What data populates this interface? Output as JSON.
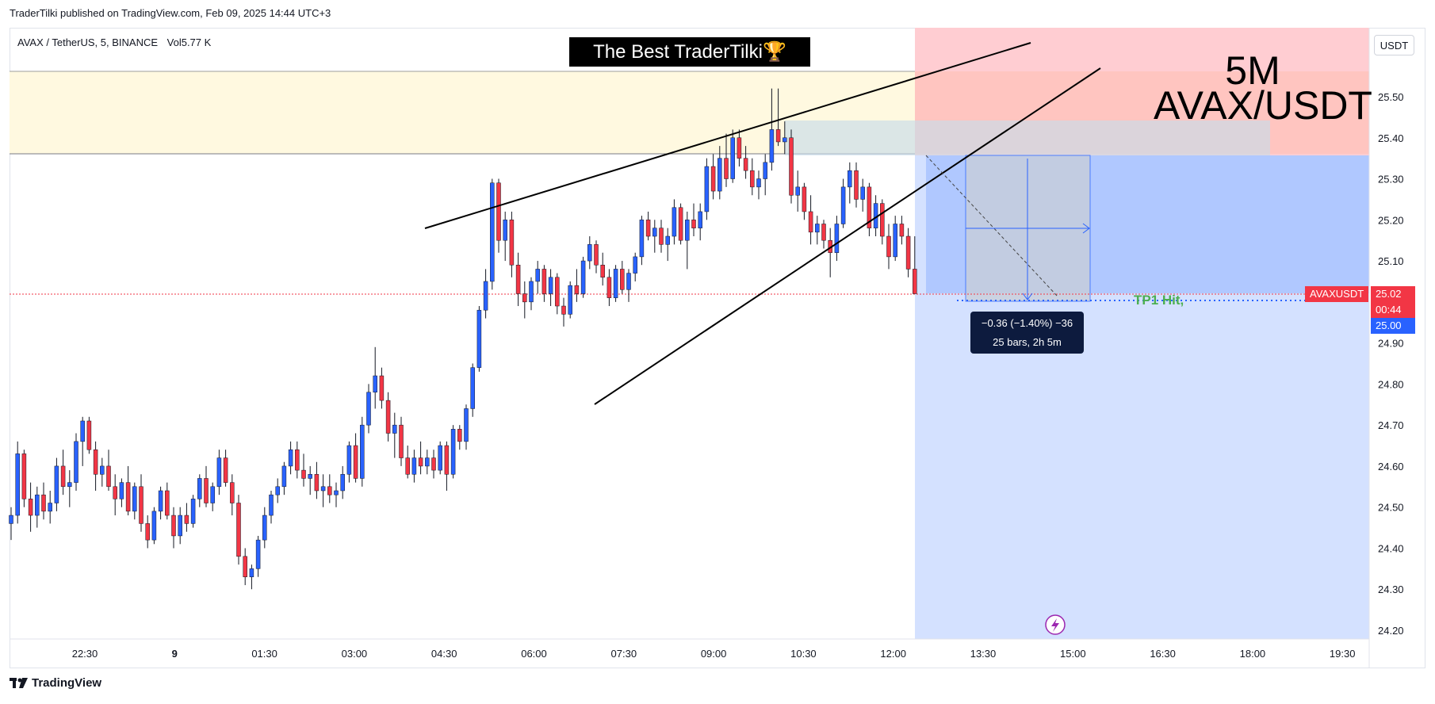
{
  "header": {
    "publisher_line": "TraderTilki published on TradingView.com, Feb 09, 2025 14:44 UTC+3",
    "symbol": "AVAX / TetherUS, 5, BINANCE",
    "volume_label": "Vol",
    "volume_value": "5.77 K"
  },
  "overlay": {
    "title_box": "The Best TraderTilki🏆",
    "big_label_line1": "5M",
    "big_label_line2": "AVAX/USDT",
    "tp1_text": "TP1 Hit,",
    "measure_line1": "−0.36 (−1.40%) −36",
    "measure_line2": "25 bars, 2h 5m"
  },
  "price_scale": {
    "currency_button": "USDT",
    "symbol_tag": "AVAXUSDT",
    "last_price": "25.02",
    "countdown": "00:44",
    "crosshair_price": "25.00"
  },
  "footer": {
    "logo_text": "TradingView"
  },
  "colors": {
    "up_candle": "#2962ff",
    "down_candle": "#f23645",
    "stop_zone": "#ffcdd2",
    "target_zone": "#d4e1ff",
    "supply_zone": "#fff9e0",
    "tp1_green": "#4caf50",
    "trend_lines": "#000000"
  },
  "chart_data": {
    "type": "candlestick",
    "timeframe": "5m",
    "ylim": [
      24.15,
      25.7
    ],
    "y_ticks": [
      25.5,
      25.4,
      25.3,
      25.2,
      25.1,
      24.9,
      24.8,
      24.7,
      24.6,
      24.5,
      24.4,
      24.3,
      24.2
    ],
    "x_ticks": [
      "22:30",
      "9",
      "01:30",
      "03:00",
      "04:30",
      "06:00",
      "07:30",
      "09:00",
      "10:30",
      "12:00",
      "13:30",
      "15:00",
      "16:30",
      "18:00",
      "19:30"
    ],
    "last_price": 25.02,
    "zones": [
      {
        "name": "supply zone",
        "from": 25.37,
        "to": 25.56
      },
      {
        "name": "consolidation box",
        "from": 25.36,
        "to": 25.44
      },
      {
        "name": "stop zone",
        "from": 25.37,
        "to": 25.7
      },
      {
        "name": "target zone",
        "from": 24.2,
        "to": 25.37
      }
    ],
    "candles": [
      [
        24.46,
        24.5,
        24.42,
        24.48
      ],
      [
        24.48,
        24.66,
        24.46,
        24.63
      ],
      [
        24.63,
        24.64,
        24.5,
        24.52
      ],
      [
        24.52,
        24.56,
        24.44,
        24.48
      ],
      [
        24.48,
        24.55,
        24.45,
        24.53
      ],
      [
        24.53,
        24.56,
        24.47,
        24.49
      ],
      [
        24.49,
        24.54,
        24.46,
        24.51
      ],
      [
        24.51,
        24.62,
        24.49,
        24.6
      ],
      [
        24.6,
        24.64,
        24.53,
        24.55
      ],
      [
        24.55,
        24.59,
        24.5,
        24.56
      ],
      [
        24.56,
        24.68,
        24.54,
        24.66
      ],
      [
        24.66,
        24.72,
        24.6,
        24.71
      ],
      [
        24.71,
        24.72,
        24.63,
        24.64
      ],
      [
        24.64,
        24.66,
        24.54,
        24.58
      ],
      [
        24.58,
        24.62,
        24.55,
        24.6
      ],
      [
        24.6,
        24.64,
        24.54,
        24.55
      ],
      [
        24.55,
        24.58,
        24.48,
        24.52
      ],
      [
        24.52,
        24.57,
        24.5,
        24.56
      ],
      [
        24.56,
        24.6,
        24.48,
        24.49
      ],
      [
        24.49,
        24.56,
        24.47,
        24.55
      ],
      [
        24.55,
        24.58,
        24.44,
        24.46
      ],
      [
        24.46,
        24.48,
        24.4,
        24.42
      ],
      [
        24.42,
        24.5,
        24.41,
        24.49
      ],
      [
        24.49,
        24.55,
        24.47,
        24.54
      ],
      [
        24.54,
        24.56,
        24.47,
        24.48
      ],
      [
        24.48,
        24.5,
        24.4,
        24.43
      ],
      [
        24.43,
        24.5,
        24.41,
        24.48
      ],
      [
        24.48,
        24.51,
        24.44,
        24.46
      ],
      [
        24.46,
        24.53,
        24.45,
        24.52
      ],
      [
        24.52,
        24.58,
        24.5,
        24.57
      ],
      [
        24.57,
        24.6,
        24.5,
        24.51
      ],
      [
        24.51,
        24.56,
        24.49,
        24.55
      ],
      [
        24.55,
        24.64,
        24.53,
        24.62
      ],
      [
        24.62,
        24.64,
        24.55,
        24.56
      ],
      [
        24.56,
        24.58,
        24.48,
        24.51
      ],
      [
        24.51,
        24.53,
        24.36,
        24.38
      ],
      [
        24.38,
        24.4,
        24.31,
        24.33
      ],
      [
        24.33,
        24.36,
        24.3,
        24.35
      ],
      [
        24.35,
        24.43,
        24.33,
        24.42
      ],
      [
        24.42,
        24.5,
        24.4,
        24.48
      ],
      [
        24.48,
        24.54,
        24.46,
        24.53
      ],
      [
        24.53,
        24.57,
        24.51,
        24.55
      ],
      [
        24.55,
        24.61,
        24.53,
        24.6
      ],
      [
        24.6,
        24.66,
        24.58,
        24.64
      ],
      [
        24.64,
        24.66,
        24.57,
        24.59
      ],
      [
        24.59,
        24.63,
        24.55,
        24.57
      ],
      [
        24.57,
        24.6,
        24.53,
        24.58
      ],
      [
        24.58,
        24.61,
        24.52,
        24.54
      ],
      [
        24.54,
        24.58,
        24.5,
        24.55
      ],
      [
        24.55,
        24.58,
        24.51,
        24.53
      ],
      [
        24.53,
        24.56,
        24.5,
        24.54
      ],
      [
        24.54,
        24.6,
        24.52,
        24.58
      ],
      [
        24.58,
        24.66,
        24.56,
        24.65
      ],
      [
        24.65,
        24.68,
        24.56,
        24.57
      ],
      [
        24.57,
        24.72,
        24.55,
        24.7
      ],
      [
        24.7,
        24.8,
        24.68,
        24.78
      ],
      [
        24.78,
        24.89,
        24.74,
        24.82
      ],
      [
        24.82,
        24.84,
        24.74,
        24.76
      ],
      [
        24.76,
        24.78,
        24.66,
        24.68
      ],
      [
        24.68,
        24.73,
        24.62,
        24.7
      ],
      [
        24.7,
        24.72,
        24.6,
        24.62
      ],
      [
        24.62,
        24.65,
        24.57,
        24.58
      ],
      [
        24.58,
        24.64,
        24.56,
        24.62
      ],
      [
        24.62,
        24.66,
        24.58,
        24.6
      ],
      [
        24.6,
        24.64,
        24.58,
        24.62
      ],
      [
        24.62,
        24.64,
        24.57,
        24.59
      ],
      [
        24.59,
        24.66,
        24.58,
        24.65
      ],
      [
        24.65,
        24.66,
        24.54,
        24.58
      ],
      [
        24.58,
        24.7,
        24.57,
        24.69
      ],
      [
        24.69,
        24.7,
        24.64,
        24.66
      ],
      [
        24.66,
        24.75,
        24.64,
        24.74
      ],
      [
        24.74,
        24.85,
        24.72,
        24.84
      ],
      [
        24.84,
        24.99,
        24.83,
        24.98
      ],
      [
        24.98,
        25.08,
        24.96,
        25.05
      ],
      [
        25.05,
        25.3,
        25.03,
        25.29
      ],
      [
        25.29,
        25.3,
        25.12,
        25.15
      ],
      [
        25.15,
        25.22,
        25.1,
        25.2
      ],
      [
        25.2,
        25.22,
        25.06,
        25.09
      ],
      [
        25.09,
        25.12,
        24.99,
        25.02
      ],
      [
        25.02,
        25.05,
        24.96,
        25.0
      ],
      [
        25.0,
        25.06,
        24.98,
        25.05
      ],
      [
        25.05,
        25.1,
        25.02,
        25.08
      ],
      [
        25.08,
        25.09,
        25.0,
        25.02
      ],
      [
        25.02,
        25.08,
        24.99,
        25.06
      ],
      [
        25.06,
        25.07,
        24.97,
        24.99
      ],
      [
        24.99,
        25.01,
        24.94,
        24.97
      ],
      [
        24.97,
        25.05,
        24.96,
        25.04
      ],
      [
        25.04,
        25.08,
        25.0,
        25.02
      ],
      [
        25.02,
        25.11,
        25.01,
        25.1
      ],
      [
        25.1,
        25.16,
        25.08,
        25.14
      ],
      [
        25.14,
        25.15,
        25.07,
        25.09
      ],
      [
        25.09,
        25.12,
        25.04,
        25.06
      ],
      [
        25.06,
        25.08,
        24.99,
        25.01
      ],
      [
        25.01,
        25.09,
        25.0,
        25.08
      ],
      [
        25.08,
        25.1,
        25.02,
        25.03
      ],
      [
        25.03,
        25.08,
        25.0,
        25.07
      ],
      [
        25.07,
        25.12,
        25.05,
        25.11
      ],
      [
        25.11,
        25.21,
        25.09,
        25.2
      ],
      [
        25.2,
        25.22,
        25.15,
        25.16
      ],
      [
        25.16,
        25.2,
        25.12,
        25.18
      ],
      [
        25.18,
        25.2,
        25.12,
        25.14
      ],
      [
        25.14,
        25.18,
        25.1,
        25.16
      ],
      [
        25.16,
        25.25,
        25.14,
        25.23
      ],
      [
        25.23,
        25.24,
        25.14,
        25.15
      ],
      [
        25.15,
        25.22,
        25.08,
        25.2
      ],
      [
        25.2,
        25.24,
        25.16,
        25.18
      ],
      [
        25.18,
        25.24,
        25.15,
        25.22
      ],
      [
        25.22,
        25.35,
        25.2,
        25.33
      ],
      [
        25.33,
        25.36,
        25.25,
        25.27
      ],
      [
        25.27,
        25.38,
        25.25,
        25.35
      ],
      [
        25.35,
        25.41,
        25.28,
        25.3
      ],
      [
        25.3,
        25.42,
        25.29,
        25.4
      ],
      [
        25.4,
        25.42,
        25.33,
        25.35
      ],
      [
        25.35,
        25.38,
        25.3,
        25.32
      ],
      [
        25.32,
        25.35,
        25.26,
        25.28
      ],
      [
        25.28,
        25.32,
        25.25,
        25.3
      ],
      [
        25.3,
        25.36,
        25.26,
        25.34
      ],
      [
        25.34,
        25.52,
        25.32,
        25.42
      ],
      [
        25.42,
        25.52,
        25.38,
        25.39
      ],
      [
        25.39,
        25.44,
        25.36,
        25.4
      ],
      [
        25.4,
        25.42,
        25.24,
        25.26
      ],
      [
        25.26,
        25.32,
        25.22,
        25.28
      ],
      [
        25.28,
        25.29,
        25.2,
        25.22
      ],
      [
        25.22,
        25.26,
        25.14,
        25.17
      ],
      [
        25.17,
        25.21,
        25.14,
        25.19
      ],
      [
        25.19,
        25.2,
        25.13,
        25.15
      ],
      [
        25.15,
        25.18,
        25.06,
        25.12
      ],
      [
        25.12,
        25.21,
        25.1,
        25.19
      ],
      [
        25.19,
        25.3,
        25.18,
        25.28
      ],
      [
        25.28,
        25.34,
        25.24,
        25.32
      ],
      [
        25.32,
        25.34,
        25.23,
        25.25
      ],
      [
        25.25,
        25.3,
        25.22,
        25.28
      ],
      [
        25.28,
        25.29,
        25.16,
        25.18
      ],
      [
        25.18,
        25.26,
        25.16,
        25.24
      ],
      [
        25.24,
        25.25,
        25.14,
        25.16
      ],
      [
        25.16,
        25.19,
        25.08,
        25.11
      ],
      [
        25.11,
        25.21,
        25.1,
        25.19
      ],
      [
        25.19,
        25.21,
        25.14,
        25.16
      ],
      [
        25.16,
        25.18,
        25.06,
        25.08
      ],
      [
        25.08,
        25.16,
        25.02,
        25.02
      ]
    ]
  }
}
